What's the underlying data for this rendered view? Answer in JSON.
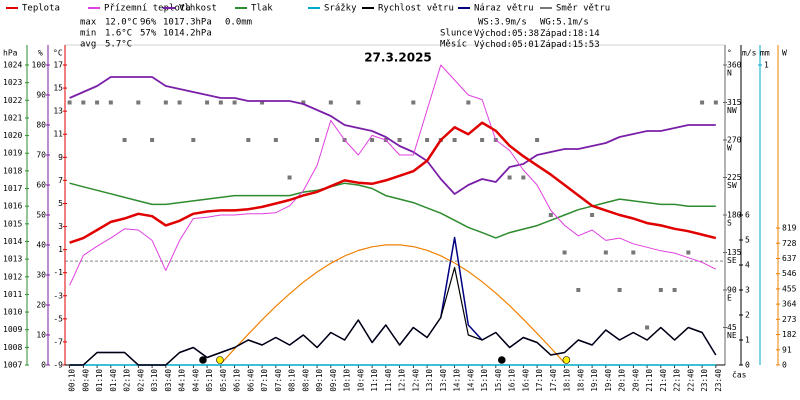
{
  "chart_data": {
    "type": "line",
    "title": "27.3.2025",
    "x_label": "čas",
    "categories": [
      "00:10",
      "00:40",
      "01:10",
      "01:40",
      "02:10",
      "02:40",
      "03:10",
      "03:40",
      "04:10",
      "04:40",
      "05:10",
      "05:40",
      "06:10",
      "06:40",
      "07:10",
      "07:40",
      "08:10",
      "08:40",
      "09:10",
      "09:40",
      "10:10",
      "10:40",
      "11:10",
      "11:40",
      "12:10",
      "12:40",
      "13:10",
      "13:40",
      "14:10",
      "14:40",
      "15:10",
      "15:40",
      "16:10",
      "16:40",
      "17:10",
      "17:40",
      "18:10",
      "18:40",
      "19:10",
      "19:40",
      "20:10",
      "20:40",
      "21:10",
      "21:40",
      "22:10",
      "22:40",
      "23:10",
      "23:40"
    ],
    "ylabel": "°C",
    "ycolor": "#e00000",
    "ylim": [
      -9,
      17
    ],
    "yticks": [
      17,
      15,
      13,
      11,
      9,
      7,
      5,
      3,
      1,
      -1,
      -3,
      -5,
      -7,
      -9
    ],
    "y2label": "hPa",
    "y2color": "#2e8b2e",
    "y2lim": [
      1007,
      1024
    ],
    "y2ticks": [
      1024,
      1023,
      1022,
      1021,
      1020,
      1019,
      1018,
      1017,
      1016,
      1015,
      1014,
      1013,
      1012,
      1011,
      1010,
      1009,
      1008,
      1007
    ],
    "y3label": "%",
    "y3color": "#7a1fa8",
    "y3lim": [
      0,
      100
    ],
    "y3ticks": [
      100,
      90,
      80,
      70,
      60,
      50,
      40,
      30,
      20,
      10,
      0
    ],
    "y4label": "°",
    "y4color": "#666666",
    "y4lim": [
      0,
      360
    ],
    "y4ticks": [
      360,
      315,
      270,
      225,
      180,
      135,
      90,
      45
    ],
    "y4tick_names": [
      "N",
      "NW",
      "W",
      "SW",
      "S",
      "SE",
      "E",
      "NE"
    ],
    "y5label": "m/s",
    "y5color": "#000000",
    "y5lim": [
      0,
      12
    ],
    "y5ticks": [
      6,
      5,
      4,
      3,
      2,
      1,
      0
    ],
    "y6label": "mm",
    "y6color": "#00aacc",
    "y6lim": [
      0,
      1
    ],
    "y6ticks": [
      1
    ],
    "y7label": "W",
    "y7color": "#f08000",
    "y7lim": [
      0,
      1794
    ],
    "y7ticks": [
      819,
      728,
      637,
      546,
      455,
      364,
      273,
      182,
      91,
      0
    ],
    "hline": 0,
    "series": [
      {
        "name": "Teplota",
        "color": "#e00000",
        "axis": "y",
        "width": 2.5,
        "values": [
          1.6,
          2.0,
          2.7,
          3.4,
          3.7,
          4.1,
          3.9,
          3.1,
          3.5,
          4.1,
          4.3,
          4.4,
          4.4,
          4.5,
          4.7,
          5.0,
          5.3,
          5.7,
          6.0,
          6.5,
          7.0,
          6.8,
          6.7,
          7.0,
          7.4,
          7.8,
          8.7,
          10.5,
          11.6,
          11.0,
          12.0,
          11.3,
          10.0,
          9.1,
          8.3,
          7.5,
          6.6,
          5.7,
          4.8,
          4.4,
          4.0,
          3.7,
          3.3,
          3.1,
          2.8,
          2.6,
          2.3,
          2.0
        ]
      },
      {
        "name": "Přízemní teplota",
        "color": "#e040e0",
        "axis": "y",
        "width": 1,
        "values": [
          -2.1,
          0.5,
          1.3,
          2.0,
          2.8,
          2.7,
          1.8,
          -0.8,
          1.8,
          3.7,
          3.8,
          4.0,
          4.0,
          4.1,
          4.1,
          4.2,
          4.8,
          6.1,
          8.3,
          12.2,
          10.5,
          9.2,
          10.9,
          10.5,
          9.2,
          9.2,
          13.1,
          17.0,
          15.7,
          14.4,
          14.0,
          10.5,
          9.6,
          7.9,
          6.6,
          4.4,
          3.1,
          2.2,
          2.7,
          1.8,
          2.0,
          1.5,
          1.2,
          0.9,
          0.7,
          0.3,
          -0.1,
          -0.7
        ]
      },
      {
        "name": "Vlhkost",
        "color": "#7a1fa8",
        "axis": "y3",
        "width": 1.8,
        "values": [
          89,
          91,
          93,
          96,
          96,
          96,
          96,
          93,
          92,
          91,
          90,
          89,
          89,
          88,
          88,
          88,
          88,
          87,
          85,
          83,
          80,
          79,
          78,
          76,
          73,
          71,
          68,
          62,
          57,
          60,
          62,
          61,
          66,
          67,
          70,
          71,
          72,
          72,
          73,
          74,
          76,
          77,
          78,
          78,
          79,
          80,
          80,
          80
        ]
      },
      {
        "name": "Tlak",
        "color": "#2e8b2e",
        "axis": "y2",
        "width": 1.5,
        "values": [
          1017.3,
          1017.1,
          1016.9,
          1016.7,
          1016.5,
          1016.3,
          1016.1,
          1016.1,
          1016.2,
          1016.3,
          1016.4,
          1016.5,
          1016.6,
          1016.6,
          1016.6,
          1016.6,
          1016.6,
          1016.8,
          1016.9,
          1017.1,
          1017.3,
          1017.2,
          1017.0,
          1016.6,
          1016.4,
          1016.2,
          1015.9,
          1015.6,
          1015.2,
          1014.8,
          1014.5,
          1014.2,
          1014.5,
          1014.7,
          1014.9,
          1015.2,
          1015.5,
          1015.8,
          1016.0,
          1016.2,
          1016.4,
          1016.3,
          1016.2,
          1016.1,
          1016.1,
          1016.0,
          1016.0,
          1016.0
        ]
      },
      {
        "name": "Srážky",
        "color": "#00aacc",
        "axis": "y6",
        "width": 1.5,
        "values": [
          0,
          0,
          0,
          0,
          0,
          0,
          0,
          0,
          0,
          0,
          0,
          0,
          0,
          0,
          0,
          0,
          0,
          0,
          0,
          0,
          0,
          0,
          0,
          0,
          0,
          0,
          0,
          0,
          0,
          0,
          0,
          0,
          0,
          0,
          0,
          0,
          0,
          0,
          0,
          0,
          0,
          0,
          0,
          0,
          0,
          0,
          0,
          0
        ]
      },
      {
        "name": "Rychlost větru",
        "color": "#000000",
        "axis": "y5",
        "width": 1.2,
        "values": [
          0,
          0,
          0.5,
          0.5,
          0.5,
          0,
          0,
          0,
          0.5,
          0.7,
          0.3,
          0.5,
          0.7,
          1.0,
          0.8,
          1.1,
          0.8,
          1.2,
          0.7,
          1.3,
          1.0,
          1.8,
          0.9,
          1.6,
          0.8,
          1.5,
          1.1,
          1.9,
          3.9,
          1.2,
          1.0,
          1.3,
          0.7,
          1.1,
          0.9,
          0.4,
          0.5,
          1.0,
          0.8,
          1.4,
          1.0,
          1.3,
          1.0,
          1.5,
          1.0,
          1.5,
          1.3,
          0.4
        ]
      },
      {
        "name": "Náraz větru",
        "color": "#000080",
        "axis": "y5",
        "width": 1.5,
        "values": [
          0,
          0,
          0.5,
          0.5,
          0.5,
          0,
          0,
          0,
          0.5,
          0.7,
          0.3,
          0.5,
          0.7,
          1.0,
          0.8,
          1.1,
          0.8,
          1.2,
          0.7,
          1.3,
          1.0,
          1.8,
          0.9,
          1.6,
          0.8,
          1.5,
          1.1,
          1.9,
          5.1,
          1.6,
          1.0,
          1.3,
          0.7,
          1.1,
          0.9,
          0.4,
          0.5,
          1.0,
          0.8,
          1.4,
          1.0,
          1.3,
          1.0,
          1.5,
          1.0,
          1.5,
          1.3,
          0.4
        ]
      },
      {
        "name": "Směr větru",
        "color": "#777777",
        "axis": "y4",
        "type": "scatter",
        "values": [
          315,
          315,
          315,
          315,
          270,
          315,
          270,
          315,
          315,
          270,
          315,
          315,
          315,
          270,
          315,
          270,
          225,
          315,
          270,
          315,
          270,
          315,
          270,
          270,
          270,
          315,
          270,
          270,
          270,
          315,
          270,
          270,
          225,
          225,
          270,
          180,
          135,
          90,
          180,
          135,
          90,
          135,
          45,
          90,
          90,
          135,
          315,
          315
        ]
      },
      {
        "color": "#f08000",
        "axis": "y7",
        "width": 1.2,
        "values": [
          null,
          null,
          null,
          null,
          null,
          null,
          null,
          null,
          null,
          null,
          null,
          7,
          97,
          184,
          270,
          351,
          426,
          495,
          556,
          608,
          652,
          685,
          707,
          718,
          719,
          708,
          686,
          653,
          610,
          559,
          498,
          430,
          355,
          274,
          189,
          102,
          12,
          null,
          null,
          null,
          null,
          null,
          null,
          null,
          null,
          null,
          null,
          null
        ]
      }
    ],
    "stats": [
      {
        "label": "max",
        "items": [
          {
            "text": "12.0°C",
            "color": "#e00000"
          },
          {
            "text": "96%",
            "color": "#7a1fa8"
          },
          {
            "text": "1017.3hPa",
            "color": "#2e8b2e"
          },
          {
            "text": "0.0mm",
            "color": "#00aacc"
          }
        ]
      },
      {
        "label": "min",
        "items": [
          {
            "text": "1.6°C",
            "color": "#e00000"
          },
          {
            "text": "57%",
            "color": "#7a1fa8"
          },
          {
            "text": "1014.2hPa",
            "color": "#2e8b2e"
          }
        ]
      },
      {
        "label": "avg",
        "items": [
          {
            "text": "5.7°C",
            "color": "#e00000"
          }
        ]
      }
    ],
    "wind": [
      "WS:3.9m/s",
      "WG:5.1m/s"
    ],
    "sun": {
      "label": "Slunce",
      "rise_label": "Východ:",
      "rise": "05:38",
      "set_label": "Západ:",
      "set": "18:14",
      "color": "#ffee00"
    },
    "moon": {
      "label": "Měsíc",
      "rise_label": "Východ:",
      "rise": "05:01",
      "set_label": "Západ:",
      "set": "15:53",
      "color": "#000000"
    }
  }
}
